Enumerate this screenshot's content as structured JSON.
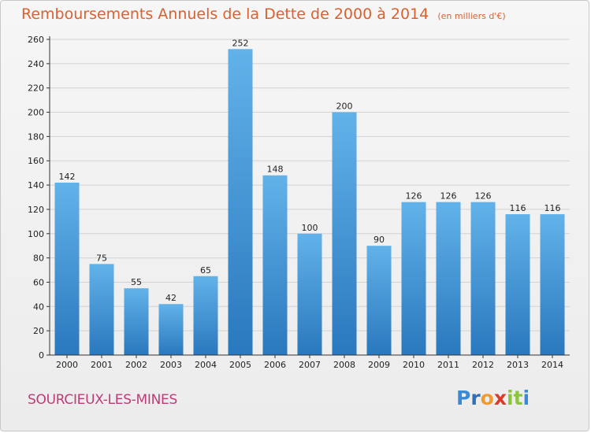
{
  "header": {
    "title": "Remboursements Annuels de la Dette de 2000 à 2014",
    "subtitle": "(en milliers d'€)"
  },
  "footer": {
    "city": "SOURCIEUX-LES-MINES",
    "logo_letters": [
      "P",
      "r",
      "o",
      "x",
      "i",
      "t",
      "i"
    ],
    "logo_colors": [
      "#3a8ad6",
      "#2e6fb8",
      "#f29a2e",
      "#d93a2b",
      "#8cc43f",
      "#8cc43f",
      "#3a8ad6"
    ]
  },
  "colors": {
    "bar_light": "#62b2ea",
    "bar_dark": "#2a78bd",
    "grid": "#d2d2d2",
    "axis": "#333333",
    "text": "#222222"
  },
  "chart_data": {
    "type": "bar",
    "categories": [
      "2000",
      "2001",
      "2002",
      "2003",
      "2004",
      "2005",
      "2006",
      "2007",
      "2008",
      "2009",
      "2010",
      "2011",
      "2012",
      "2013",
      "2014"
    ],
    "values": [
      142,
      75,
      55,
      42,
      65,
      252,
      148,
      100,
      200,
      90,
      126,
      126,
      126,
      116,
      116
    ],
    "data_labels": [
      "142",
      "75",
      "55",
      "42",
      "65",
      "252",
      "148",
      "100",
      "200",
      "90",
      "126",
      "126",
      "126",
      "116",
      "116"
    ],
    "ylim": [
      0,
      260
    ],
    "yticks": [
      0,
      20,
      40,
      60,
      80,
      100,
      120,
      140,
      160,
      180,
      200,
      220,
      240,
      260
    ],
    "grid": true,
    "title": "Remboursements Annuels de la Dette de 2000 à 2014",
    "xlabel": "",
    "ylabel": ""
  }
}
